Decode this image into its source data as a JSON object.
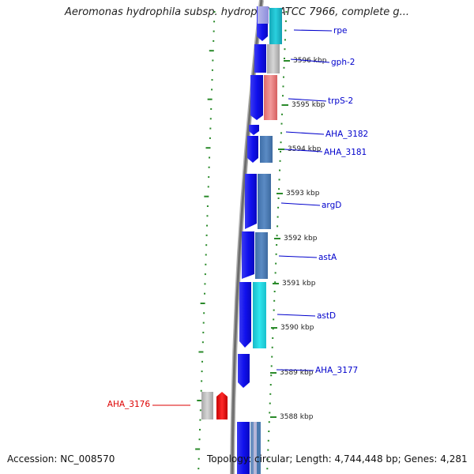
{
  "title": "Aeromonas hydrophila subsp. hydrophila ATCC 7966, complete g...",
  "footer": {
    "accession": "Accession: NC_008570",
    "topology": "Topology: circular; Length: 4,744,448 bp; Genes: 4,281"
  },
  "colors": {
    "label": "#0000cc",
    "label_highlight": "#dd0000",
    "tick": "#2a8a2a",
    "backbone": "#7a7a7a",
    "strand_outer": "#1010e0",
    "highlight_feature": "#ee1111"
  },
  "scale_labels": [
    "3596 kbp",
    "3595 kbp",
    "3594 kbp",
    "3593 kbp",
    "3592 kbp",
    "3591 kbp",
    "3590 kbp",
    "3589 kbp",
    "3588 kbp"
  ],
  "gene_labels": [
    {
      "id": "rpe",
      "text": "rpe",
      "highlight": false
    },
    {
      "id": "gph-2",
      "text": "gph-2",
      "highlight": false
    },
    {
      "id": "trpS-2",
      "text": "trpS-2",
      "highlight": false
    },
    {
      "id": "AHA_3182",
      "text": "AHA_3182",
      "highlight": false
    },
    {
      "id": "AHA_3181",
      "text": "AHA_3181",
      "highlight": false
    },
    {
      "id": "argD",
      "text": "argD",
      "highlight": false
    },
    {
      "id": "astA",
      "text": "astA",
      "highlight": false
    },
    {
      "id": "astD",
      "text": "astD",
      "highlight": false
    },
    {
      "id": "AHA_3177",
      "text": "AHA_3177",
      "highlight": false
    },
    {
      "id": "AHA_3176",
      "text": "AHA_3176",
      "highlight": true
    }
  ]
}
